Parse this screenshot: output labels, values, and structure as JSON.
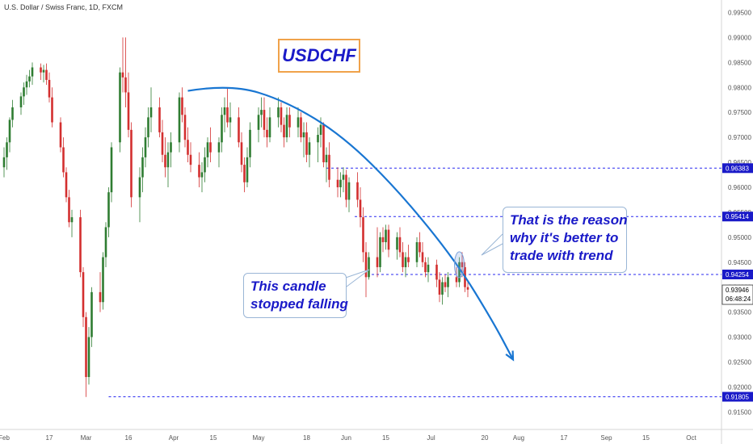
{
  "header": {
    "symbol_title": "U.S. Dollar / Swiss Franc, 1D, FXCM"
  },
  "annotations": {
    "title_box": "USDCHF",
    "callout_trend": [
      "That is the reason",
      "why it's better to",
      "trade with trend"
    ],
    "callout_candle": [
      "This candle",
      "stopped falling"
    ]
  },
  "colors": {
    "up_candle": "#2f7d32",
    "down_candle": "#d32f2f",
    "trend_arc": "#1976d2",
    "level_line": "#2a2af0",
    "label_bg": "#1a1ac8",
    "title_border": "#f0a24a",
    "text_blue": "#1a1ac8",
    "axis_text": "#555555"
  },
  "chart_data": {
    "type": "candlestick",
    "symbol": "USDCHF",
    "timeframe": "1D",
    "broker": "FXCM",
    "y_range": [
      0.9115,
      0.9975
    ],
    "y_ticks": [
      "0.91500",
      "0.92000",
      "0.92500",
      "0.93000",
      "0.93500",
      "0.94000",
      "0.94500",
      "0.95000",
      "0.95500",
      "0.96000",
      "0.96500",
      "0.97000",
      "0.97500",
      "0.98000",
      "0.98500",
      "0.99000",
      "0.99500"
    ],
    "x_ticks": [
      "Feb",
      "17",
      "Mar",
      "16",
      "Apr",
      "15",
      "May",
      "18",
      "Jun",
      "15",
      "Jul",
      "20",
      "Aug",
      "17",
      "Sep",
      "15",
      "Oct"
    ],
    "x_tick_days": [
      0,
      16,
      29,
      44,
      60,
      74,
      90,
      107,
      121,
      135,
      151,
      170,
      182,
      198,
      213,
      227,
      243
    ],
    "levels": [
      {
        "label": "0.96383",
        "value": 0.96383,
        "from_day": 114
      },
      {
        "label": "0.95414",
        "value": 0.95414,
        "from_day": 124
      },
      {
        "label": "0.94254",
        "value": 0.94254,
        "from_day": 130
      },
      {
        "label": "0.91805",
        "value": 0.91805,
        "from_day": 37
      }
    ],
    "price_label": {
      "value": 0.93946,
      "text": "0.93946",
      "countdown": "06:48:24"
    },
    "trend_curve": [
      {
        "day": 65,
        "price": 0.9793
      },
      {
        "day": 80,
        "price": 0.9807
      },
      {
        "day": 100,
        "price": 0.9772
      },
      {
        "day": 120,
        "price": 0.9702
      },
      {
        "day": 140,
        "price": 0.959
      },
      {
        "day": 160,
        "price": 0.945
      },
      {
        "day": 173,
        "price": 0.933
      },
      {
        "day": 180,
        "price": 0.9255
      }
    ],
    "candles": [
      {
        "d": 0,
        "o": 0.964,
        "h": 0.968,
        "l": 0.962,
        "c": 0.966
      },
      {
        "d": 1,
        "o": 0.966,
        "h": 0.97,
        "l": 0.9635,
        "c": 0.969
      },
      {
        "d": 2,
        "o": 0.969,
        "h": 0.974,
        "l": 0.967,
        "c": 0.9735
      },
      {
        "d": 3,
        "o": 0.9735,
        "h": 0.9775,
        "l": 0.972,
        "c": 0.976
      },
      {
        "d": 6,
        "o": 0.976,
        "h": 0.979,
        "l": 0.9745,
        "c": 0.9782
      },
      {
        "d": 7,
        "o": 0.9782,
        "h": 0.981,
        "l": 0.9765,
        "c": 0.98
      },
      {
        "d": 8,
        "o": 0.98,
        "h": 0.9825,
        "l": 0.9785,
        "c": 0.9812
      },
      {
        "d": 9,
        "o": 0.9812,
        "h": 0.9835,
        "l": 0.98,
        "c": 0.9822
      },
      {
        "d": 10,
        "o": 0.9822,
        "h": 0.985,
        "l": 0.9805,
        "c": 0.984
      },
      {
        "d": 13,
        "o": 0.984,
        "h": 0.9848,
        "l": 0.9815,
        "c": 0.983
      },
      {
        "d": 14,
        "o": 0.983,
        "h": 0.9845,
        "l": 0.981,
        "c": 0.9835
      },
      {
        "d": 15,
        "o": 0.9835,
        "h": 0.9848,
        "l": 0.9805,
        "c": 0.9815
      },
      {
        "d": 16,
        "o": 0.9815,
        "h": 0.983,
        "l": 0.977,
        "c": 0.978
      },
      {
        "d": 17,
        "o": 0.978,
        "h": 0.98,
        "l": 0.972,
        "c": 0.973
      },
      {
        "d": 20,
        "o": 0.973,
        "h": 0.974,
        "l": 0.967,
        "c": 0.968
      },
      {
        "d": 21,
        "o": 0.968,
        "h": 0.97,
        "l": 0.962,
        "c": 0.963
      },
      {
        "d": 22,
        "o": 0.963,
        "h": 0.964,
        "l": 0.957,
        "c": 0.958
      },
      {
        "d": 23,
        "o": 0.958,
        "h": 0.9595,
        "l": 0.952,
        "c": 0.953
      },
      {
        "d": 24,
        "o": 0.953,
        "h": 0.9555,
        "l": 0.95,
        "c": 0.954
      },
      {
        "d": 27,
        "o": 0.954,
        "h": 0.9555,
        "l": 0.942,
        "c": 0.943
      },
      {
        "d": 28,
        "o": 0.943,
        "h": 0.944,
        "l": 0.932,
        "c": 0.934
      },
      {
        "d": 29,
        "o": 0.934,
        "h": 0.935,
        "l": 0.918,
        "c": 0.922
      },
      {
        "d": 30,
        "o": 0.922,
        "h": 0.932,
        "l": 0.9205,
        "c": 0.93
      },
      {
        "d": 31,
        "o": 0.93,
        "h": 0.94,
        "l": 0.928,
        "c": 0.939
      },
      {
        "d": 34,
        "o": 0.939,
        "h": 0.943,
        "l": 0.935,
        "c": 0.937
      },
      {
        "d": 35,
        "o": 0.937,
        "h": 0.947,
        "l": 0.9355,
        "c": 0.946
      },
      {
        "d": 36,
        "o": 0.946,
        "h": 0.953,
        "l": 0.944,
        "c": 0.952
      },
      {
        "d": 37,
        "o": 0.952,
        "h": 0.96,
        "l": 0.95,
        "c": 0.959
      },
      {
        "d": 38,
        "o": 0.959,
        "h": 0.969,
        "l": 0.957,
        "c": 0.968
      },
      {
        "d": 41,
        "o": 0.969,
        "h": 0.984,
        "l": 0.967,
        "c": 0.983
      },
      {
        "d": 42,
        "o": 0.983,
        "h": 0.99,
        "l": 0.979,
        "c": 0.982
      },
      {
        "d": 43,
        "o": 0.982,
        "h": 0.99,
        "l": 0.976,
        "c": 0.979
      },
      {
        "d": 44,
        "o": 0.979,
        "h": 0.983,
        "l": 0.97,
        "c": 0.9715
      },
      {
        "d": 45,
        "o": 0.9715,
        "h": 0.973,
        "l": 0.956,
        "c": 0.958
      },
      {
        "d": 48,
        "o": 0.958,
        "h": 0.964,
        "l": 0.953,
        "c": 0.962
      },
      {
        "d": 49,
        "o": 0.962,
        "h": 0.968,
        "l": 0.959,
        "c": 0.966
      },
      {
        "d": 50,
        "o": 0.966,
        "h": 0.972,
        "l": 0.964,
        "c": 0.97
      },
      {
        "d": 51,
        "o": 0.97,
        "h": 0.976,
        "l": 0.968,
        "c": 0.974
      },
      {
        "d": 52,
        "o": 0.974,
        "h": 0.98,
        "l": 0.971,
        "c": 0.976
      },
      {
        "d": 55,
        "o": 0.976,
        "h": 0.978,
        "l": 0.97,
        "c": 0.971
      },
      {
        "d": 56,
        "o": 0.971,
        "h": 0.9735,
        "l": 0.965,
        "c": 0.9665
      },
      {
        "d": 57,
        "o": 0.9665,
        "h": 0.97,
        "l": 0.962,
        "c": 0.964
      },
      {
        "d": 58,
        "o": 0.964,
        "h": 0.969,
        "l": 0.96,
        "c": 0.967
      },
      {
        "d": 59,
        "o": 0.967,
        "h": 0.971,
        "l": 0.964,
        "c": 0.969
      },
      {
        "d": 62,
        "o": 0.969,
        "h": 0.979,
        "l": 0.967,
        "c": 0.978
      },
      {
        "d": 63,
        "o": 0.978,
        "h": 0.98,
        "l": 0.973,
        "c": 0.9745
      },
      {
        "d": 64,
        "o": 0.9745,
        "h": 0.976,
        "l": 0.968,
        "c": 0.9695
      },
      {
        "d": 65,
        "o": 0.9695,
        "h": 0.972,
        "l": 0.965,
        "c": 0.9665
      },
      {
        "d": 66,
        "o": 0.9665,
        "h": 0.969,
        "l": 0.963,
        "c": 0.9645
      },
      {
        "d": 69,
        "o": 0.9645,
        "h": 0.967,
        "l": 0.96,
        "c": 0.962
      },
      {
        "d": 70,
        "o": 0.962,
        "h": 0.965,
        "l": 0.959,
        "c": 0.963
      },
      {
        "d": 71,
        "o": 0.963,
        "h": 0.968,
        "l": 0.961,
        "c": 0.966
      },
      {
        "d": 72,
        "o": 0.966,
        "h": 0.97,
        "l": 0.964,
        "c": 0.969
      },
      {
        "d": 73,
        "o": 0.969,
        "h": 0.972,
        "l": 0.965,
        "c": 0.967
      },
      {
        "d": 76,
        "o": 0.967,
        "h": 0.97,
        "l": 0.964,
        "c": 0.969
      },
      {
        "d": 77,
        "o": 0.969,
        "h": 0.976,
        "l": 0.967,
        "c": 0.9745
      },
      {
        "d": 78,
        "o": 0.9745,
        "h": 0.978,
        "l": 0.971,
        "c": 0.976
      },
      {
        "d": 79,
        "o": 0.976,
        "h": 0.98,
        "l": 0.972,
        "c": 0.973
      },
      {
        "d": 80,
        "o": 0.973,
        "h": 0.977,
        "l": 0.97,
        "c": 0.974
      },
      {
        "d": 83,
        "o": 0.974,
        "h": 0.976,
        "l": 0.968,
        "c": 0.969
      },
      {
        "d": 84,
        "o": 0.969,
        "h": 0.971,
        "l": 0.963,
        "c": 0.9645
      },
      {
        "d": 85,
        "o": 0.9645,
        "h": 0.966,
        "l": 0.959,
        "c": 0.961
      },
      {
        "d": 86,
        "o": 0.961,
        "h": 0.968,
        "l": 0.96,
        "c": 0.966
      },
      {
        "d": 87,
        "o": 0.966,
        "h": 0.973,
        "l": 0.964,
        "c": 0.9715
      },
      {
        "d": 90,
        "o": 0.9715,
        "h": 0.976,
        "l": 0.969,
        "c": 0.9745
      },
      {
        "d": 91,
        "o": 0.9745,
        "h": 0.978,
        "l": 0.972,
        "c": 0.9755
      },
      {
        "d": 92,
        "o": 0.9755,
        "h": 0.978,
        "l": 0.97,
        "c": 0.9715
      },
      {
        "d": 93,
        "o": 0.9715,
        "h": 0.974,
        "l": 0.968,
        "c": 0.97
      },
      {
        "d": 94,
        "o": 0.97,
        "h": 0.976,
        "l": 0.969,
        "c": 0.974
      },
      {
        "d": 97,
        "o": 0.974,
        "h": 0.978,
        "l": 0.972,
        "c": 0.976
      },
      {
        "d": 98,
        "o": 0.976,
        "h": 0.977,
        "l": 0.971,
        "c": 0.9725
      },
      {
        "d": 99,
        "o": 0.9725,
        "h": 0.974,
        "l": 0.968,
        "c": 0.97
      },
      {
        "d": 100,
        "o": 0.97,
        "h": 0.976,
        "l": 0.969,
        "c": 0.9745
      },
      {
        "d": 101,
        "o": 0.9745,
        "h": 0.976,
        "l": 0.97,
        "c": 0.972
      },
      {
        "d": 104,
        "o": 0.972,
        "h": 0.976,
        "l": 0.97,
        "c": 0.974
      },
      {
        "d": 105,
        "o": 0.974,
        "h": 0.975,
        "l": 0.969,
        "c": 0.97
      },
      {
        "d": 106,
        "o": 0.97,
        "h": 0.973,
        "l": 0.966,
        "c": 0.971
      },
      {
        "d": 107,
        "o": 0.971,
        "h": 0.973,
        "l": 0.965,
        "c": 0.9665
      },
      {
        "d": 108,
        "o": 0.9665,
        "h": 0.97,
        "l": 0.964,
        "c": 0.969
      },
      {
        "d": 111,
        "o": 0.969,
        "h": 0.972,
        "l": 0.965,
        "c": 0.9705
      },
      {
        "d": 112,
        "o": 0.9705,
        "h": 0.974,
        "l": 0.968,
        "c": 0.9725
      },
      {
        "d": 113,
        "o": 0.9725,
        "h": 0.973,
        "l": 0.964,
        "c": 0.965
      },
      {
        "d": 114,
        "o": 0.965,
        "h": 0.968,
        "l": 0.961,
        "c": 0.9665
      },
      {
        "d": 115,
        "o": 0.9665,
        "h": 0.969,
        "l": 0.96,
        "c": 0.9615
      },
      {
        "d": 118,
        "o": 0.9615,
        "h": 0.964,
        "l": 0.958,
        "c": 0.96
      },
      {
        "d": 119,
        "o": 0.96,
        "h": 0.963,
        "l": 0.958,
        "c": 0.9615
      },
      {
        "d": 120,
        "o": 0.9615,
        "h": 0.964,
        "l": 0.959,
        "c": 0.9625
      },
      {
        "d": 121,
        "o": 0.9625,
        "h": 0.9635,
        "l": 0.956,
        "c": 0.9575
      },
      {
        "d": 122,
        "o": 0.9575,
        "h": 0.962,
        "l": 0.955,
        "c": 0.961
      },
      {
        "d": 125,
        "o": 0.961,
        "h": 0.963,
        "l": 0.956,
        "c": 0.9575
      },
      {
        "d": 126,
        "o": 0.9575,
        "h": 0.96,
        "l": 0.952,
        "c": 0.954
      },
      {
        "d": 127,
        "o": 0.954,
        "h": 0.956,
        "l": 0.945,
        "c": 0.947
      },
      {
        "d": 128,
        "o": 0.947,
        "h": 0.949,
        "l": 0.938,
        "c": 0.942
      },
      {
        "d": 129,
        "o": 0.942,
        "h": 0.947,
        "l": 0.9415,
        "c": 0.946
      },
      {
        "d": 132,
        "o": 0.946,
        "h": 0.952,
        "l": 0.942,
        "c": 0.944
      },
      {
        "d": 133,
        "o": 0.944,
        "h": 0.951,
        "l": 0.943,
        "c": 0.95
      },
      {
        "d": 134,
        "o": 0.95,
        "h": 0.952,
        "l": 0.947,
        "c": 0.949
      },
      {
        "d": 135,
        "o": 0.949,
        "h": 0.9525,
        "l": 0.9475,
        "c": 0.9515
      },
      {
        "d": 136,
        "o": 0.9515,
        "h": 0.9525,
        "l": 0.946,
        "c": 0.9475
      },
      {
        "d": 139,
        "o": 0.9475,
        "h": 0.951,
        "l": 0.9455,
        "c": 0.95
      },
      {
        "d": 140,
        "o": 0.95,
        "h": 0.952,
        "l": 0.946,
        "c": 0.947
      },
      {
        "d": 141,
        "o": 0.947,
        "h": 0.949,
        "l": 0.943,
        "c": 0.944
      },
      {
        "d": 142,
        "o": 0.944,
        "h": 0.947,
        "l": 0.942,
        "c": 0.946
      },
      {
        "d": 143,
        "o": 0.946,
        "h": 0.9485,
        "l": 0.944,
        "c": 0.945
      },
      {
        "d": 146,
        "o": 0.945,
        "h": 0.95,
        "l": 0.944,
        "c": 0.949
      },
      {
        "d": 147,
        "o": 0.949,
        "h": 0.951,
        "l": 0.946,
        "c": 0.947
      },
      {
        "d": 148,
        "o": 0.947,
        "h": 0.949,
        "l": 0.944,
        "c": 0.945
      },
      {
        "d": 149,
        "o": 0.945,
        "h": 0.946,
        "l": 0.942,
        "c": 0.943
      },
      {
        "d": 150,
        "o": 0.943,
        "h": 0.946,
        "l": 0.941,
        "c": 0.9445
      },
      {
        "d": 153,
        "o": 0.9445,
        "h": 0.9455,
        "l": 0.94,
        "c": 0.9415
      },
      {
        "d": 154,
        "o": 0.9415,
        "h": 0.943,
        "l": 0.937,
        "c": 0.9385
      },
      {
        "d": 155,
        "o": 0.9385,
        "h": 0.942,
        "l": 0.9365,
        "c": 0.941
      },
      {
        "d": 156,
        "o": 0.941,
        "h": 0.9425,
        "l": 0.939,
        "c": 0.94
      },
      {
        "d": 157,
        "o": 0.94,
        "h": 0.943,
        "l": 0.938,
        "c": 0.942
      },
      {
        "d": 160,
        "o": 0.942,
        "h": 0.944,
        "l": 0.94,
        "c": 0.941
      },
      {
        "d": 161,
        "o": 0.941,
        "h": 0.946,
        "l": 0.94,
        "c": 0.945
      },
      {
        "d": 162,
        "o": 0.945,
        "h": 0.947,
        "l": 0.942,
        "c": 0.944
      },
      {
        "d": 163,
        "o": 0.944,
        "h": 0.945,
        "l": 0.939,
        "c": 0.94
      },
      {
        "d": 164,
        "o": 0.94,
        "h": 0.941,
        "l": 0.938,
        "c": 0.9395
      }
    ]
  }
}
